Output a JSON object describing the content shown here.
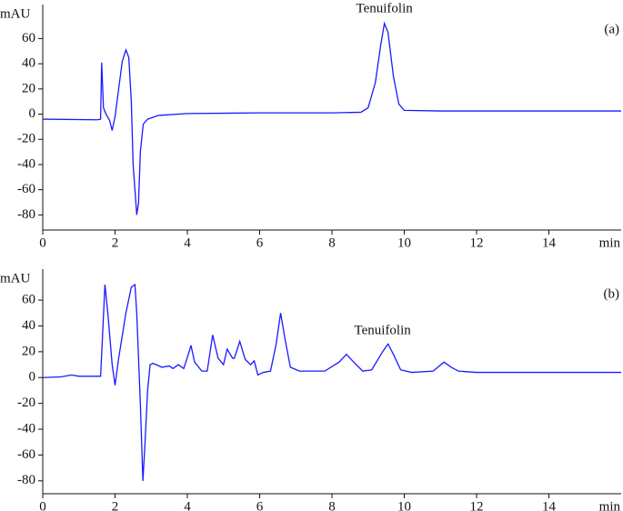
{
  "chart_data": [
    {
      "type": "line",
      "label": "(a)",
      "annotation": "Tenuifolin",
      "ylabel": "mAU",
      "xlabel": "min",
      "x": [
        0,
        1.5,
        1.6,
        1.63,
        1.68,
        1.75,
        1.85,
        1.92,
        2.0,
        2.1,
        2.2,
        2.3,
        2.38,
        2.45,
        2.5,
        2.6,
        2.65,
        2.7,
        2.78,
        2.9,
        3.2,
        4,
        6,
        8,
        8.8,
        9.0,
        9.2,
        9.35,
        9.45,
        9.55,
        9.7,
        9.85,
        10,
        11,
        16
      ],
      "series": [
        {
          "color": "#1a1aff",
          "values": [
            -4,
            -4.5,
            -4,
            41,
            5,
            0,
            -5,
            -13,
            -2,
            20,
            42,
            51,
            45,
            10,
            -40,
            -80,
            -70,
            -30,
            -8,
            -4,
            -1,
            0.5,
            1,
            1,
            1.5,
            5,
            25,
            55,
            72,
            65,
            30,
            8,
            3,
            2.5,
            2.5
          ]
        }
      ],
      "xlim": [
        0,
        16
      ],
      "xticks": [
        0,
        2,
        4,
        6,
        8,
        10,
        12,
        14
      ],
      "ylim": [
        -92,
        87
      ],
      "yticks": [
        -80,
        -60,
        -40,
        -20,
        0,
        20,
        40,
        60
      ]
    },
    {
      "type": "line",
      "label": "(b)",
      "annotation": "Tenuifolin",
      "ylabel": "mAU",
      "xlabel": "min",
      "x": [
        0,
        0.5,
        0.8,
        1,
        1.6,
        1.65,
        1.72,
        1.8,
        1.92,
        2.0,
        2.1,
        2.3,
        2.45,
        2.55,
        2.6,
        2.7,
        2.77,
        2.83,
        2.9,
        2.97,
        3.05,
        3.3,
        3.5,
        3.6,
        3.75,
        3.9,
        4.05,
        4.1,
        4.2,
        4.4,
        4.55,
        4.7,
        4.85,
        5.0,
        5.1,
        5.25,
        5.3,
        5.45,
        5.6,
        5.75,
        5.85,
        5.95,
        6.1,
        6.3,
        6.45,
        6.58,
        6.7,
        6.85,
        7.1,
        7.8,
        8.2,
        8.4,
        8.6,
        8.85,
        9.1,
        9.4,
        9.55,
        9.7,
        9.9,
        10.2,
        10.8,
        11.1,
        11.3,
        11.5,
        12,
        16
      ],
      "series": [
        {
          "color": "#1a1aff",
          "values": [
            0,
            0.5,
            2,
            1,
            1,
            30,
            72,
            50,
            10,
            -6,
            15,
            50,
            70,
            72,
            50,
            -20,
            -80,
            -50,
            -10,
            10,
            11,
            8,
            9,
            7,
            10,
            7,
            20,
            25,
            12,
            5,
            5,
            33,
            15,
            10,
            22,
            15,
            15,
            28,
            14,
            10,
            13,
            2,
            4,
            5,
            25,
            50,
            30,
            8,
            5,
            5,
            12,
            18,
            12,
            5,
            6,
            20,
            26,
            18,
            6,
            4,
            5,
            12,
            8,
            5,
            4,
            4
          ]
        }
      ],
      "xlim": [
        0,
        16
      ],
      "xticks": [
        0,
        2,
        4,
        6,
        8,
        10,
        12,
        14
      ],
      "ylim": [
        -90,
        84
      ],
      "yticks": [
        -80,
        -60,
        -40,
        -20,
        0,
        20,
        40,
        60
      ]
    }
  ]
}
